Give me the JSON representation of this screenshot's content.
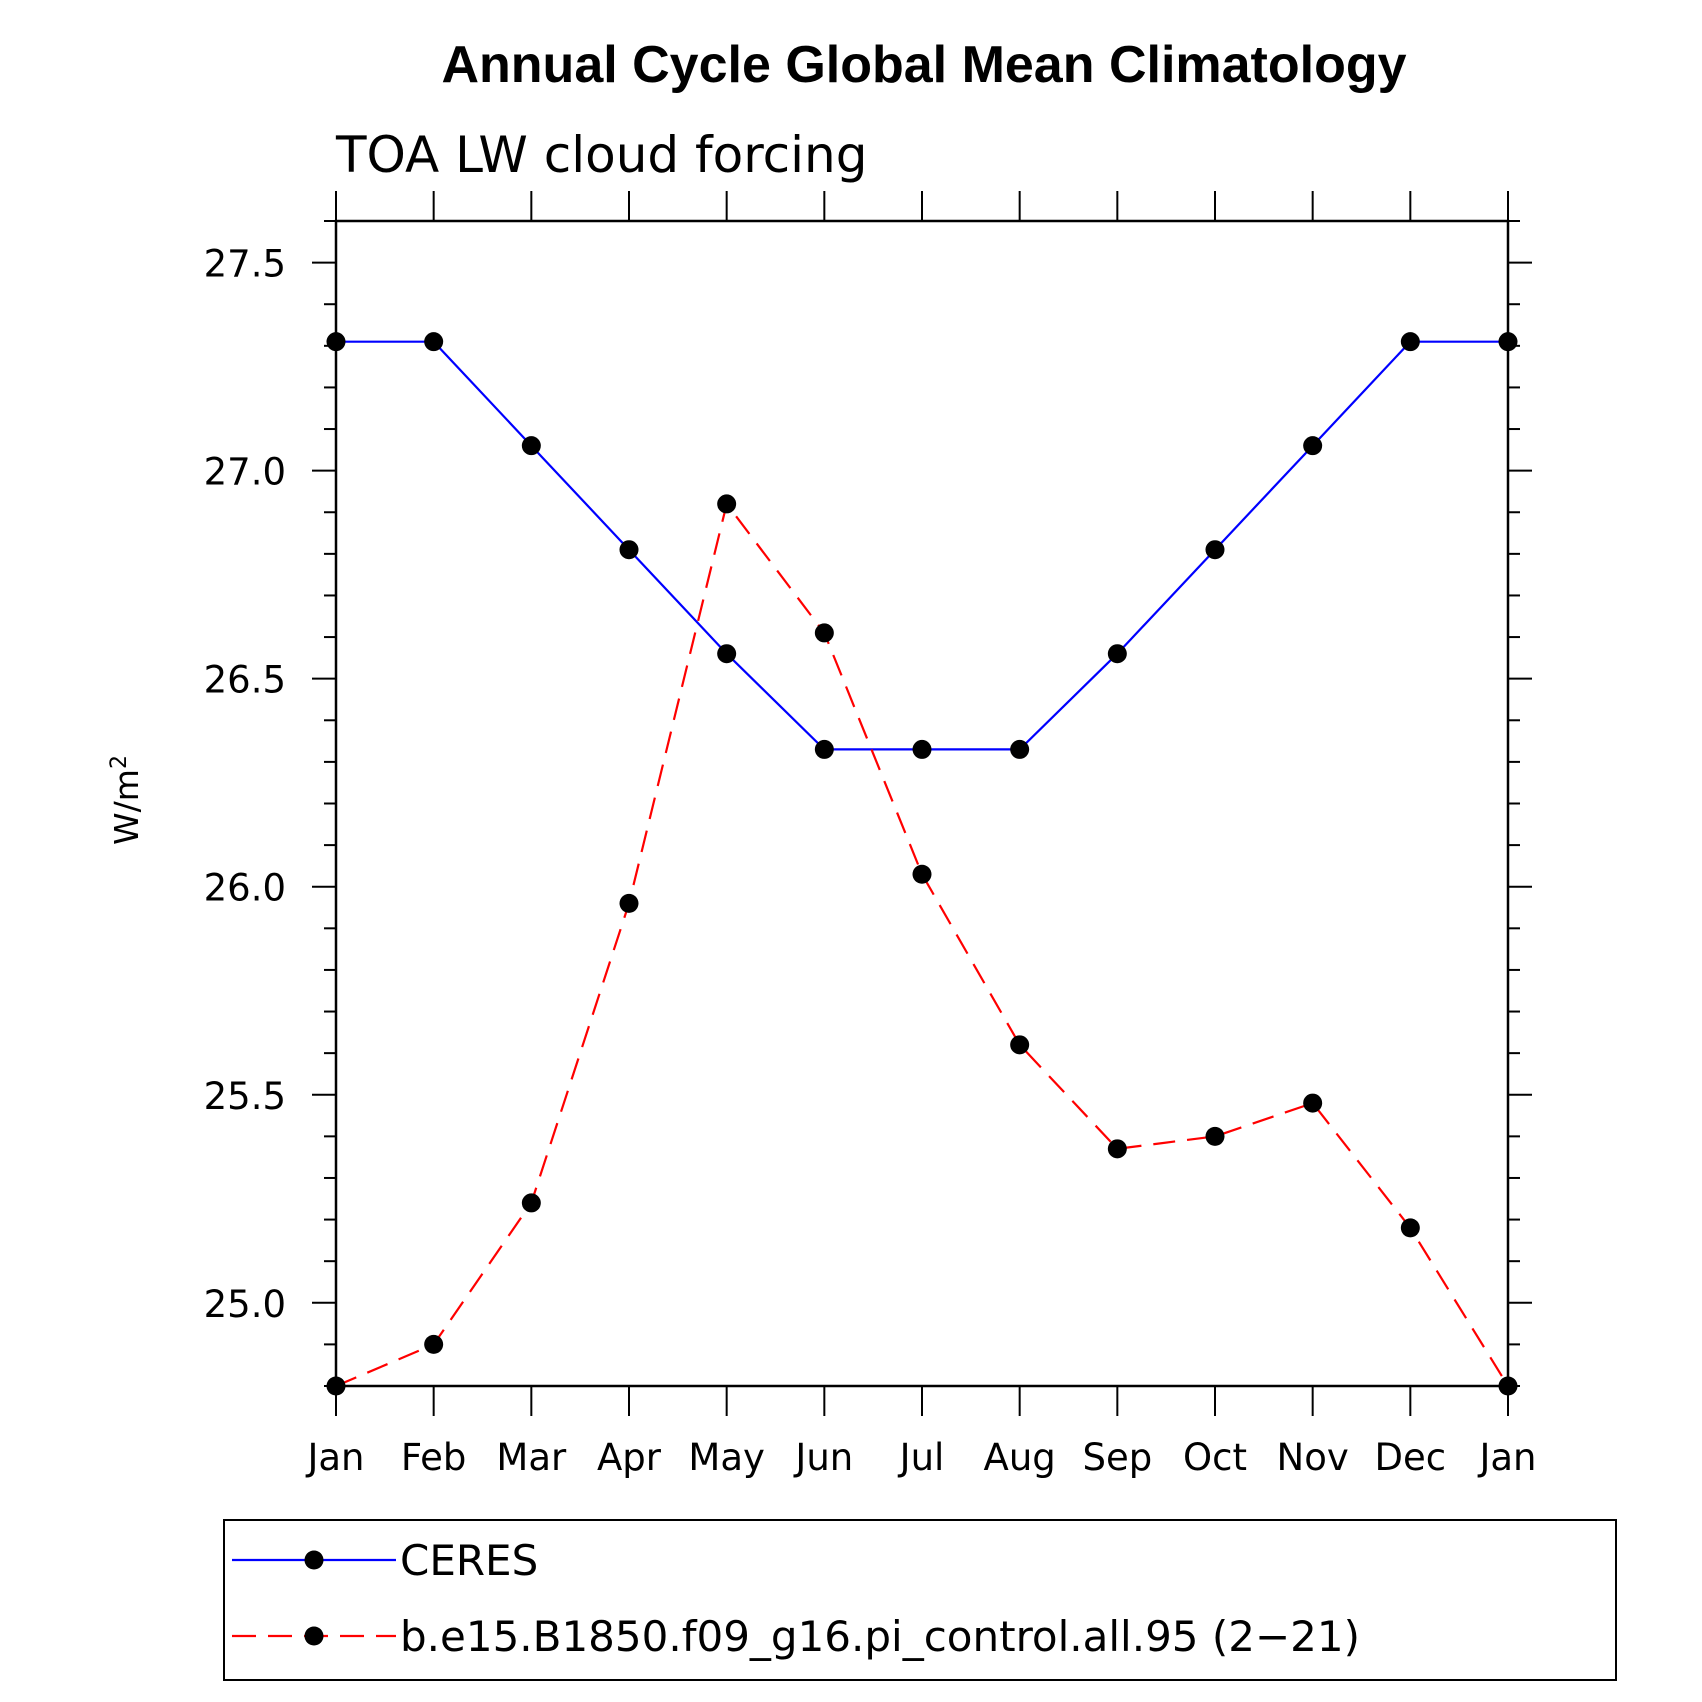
{
  "chart_data": {
    "type": "line",
    "title": "Annual Cycle Global Mean Climatology",
    "subtitle": "TOA LW cloud forcing",
    "xlabel": "",
    "ylabel": "W/m",
    "ylabel_superscript": "2",
    "categories": [
      "Jan",
      "Feb",
      "Mar",
      "Apr",
      "May",
      "Jun",
      "Jul",
      "Aug",
      "Sep",
      "Oct",
      "Nov",
      "Dec",
      "Jan"
    ],
    "ylim": [
      24.8,
      27.6
    ],
    "yticks": [
      25.0,
      25.5,
      26.0,
      26.5,
      27.0,
      27.5
    ],
    "ytick_labels": [
      "25.0",
      "25.5",
      "26.0",
      "26.5",
      "27.0",
      "27.5"
    ],
    "yminor_step": 0.1,
    "series": [
      {
        "name": "CERES",
        "color": "#0000ff",
        "dash": "solid",
        "marker": "circle",
        "values": [
          27.31,
          27.31,
          27.06,
          26.81,
          26.56,
          26.33,
          26.33,
          26.33,
          26.56,
          26.81,
          27.06,
          27.31,
          27.31
        ]
      },
      {
        "name": "b.e15.B1850.f09_g16.pi_control.all.95 (2−21)",
        "color": "#ff0000",
        "dash": "dashed",
        "marker": "circle",
        "values": [
          24.8,
          24.9,
          25.24,
          25.96,
          26.92,
          26.61,
          26.03,
          25.62,
          25.37,
          25.4,
          25.48,
          25.18,
          24.8
        ]
      }
    ],
    "legend_position": "bottom",
    "grid": false
  }
}
